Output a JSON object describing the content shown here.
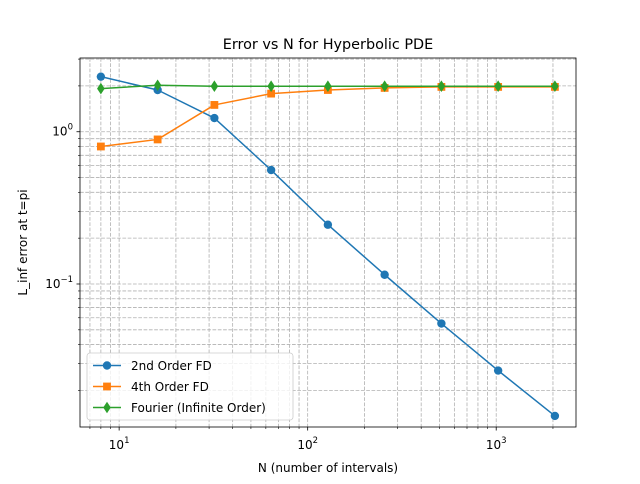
{
  "chart_data": {
    "type": "line",
    "title": "Error vs N for Hyperbolic PDE",
    "xlabel": "N (number of intervals)",
    "ylabel": "L_inf error at t=pi",
    "xscale": "log",
    "yscale": "log",
    "xlim": [
      6.2,
      2650
    ],
    "ylim": [
      0.0115,
      3.05
    ],
    "grid": true,
    "legend_position": "lower-left",
    "x_ticks": [
      {
        "value": 10,
        "base": "10",
        "exp": "1"
      },
      {
        "value": 100,
        "base": "10",
        "exp": "2"
      },
      {
        "value": 1000,
        "base": "10",
        "exp": "3"
      }
    ],
    "y_ticks": [
      {
        "value": 0.1,
        "base": "10",
        "exp": "−1"
      },
      {
        "value": 1,
        "base": "10",
        "exp": "0"
      }
    ],
    "x": [
      8,
      16,
      32,
      64,
      128,
      256,
      512,
      1024,
      2048
    ],
    "series": [
      {
        "name": "2nd Order FD",
        "color": "#1f77b4",
        "marker": "circle",
        "values": [
          2.3,
          1.88,
          1.23,
          0.56,
          0.245,
          0.115,
          0.055,
          0.027,
          0.0136
        ]
      },
      {
        "name": "4th Order FD",
        "color": "#ff7f0e",
        "marker": "square",
        "values": [
          0.8,
          0.89,
          1.5,
          1.78,
          1.88,
          1.94,
          1.97,
          1.97,
          1.97
        ]
      },
      {
        "name": "Fourier (Infinite Order)",
        "color": "#2ca02c",
        "marker": "diamond",
        "values": [
          1.92,
          2.02,
          1.99,
          1.99,
          1.99,
          1.99,
          1.99,
          1.99,
          1.99
        ]
      }
    ]
  }
}
